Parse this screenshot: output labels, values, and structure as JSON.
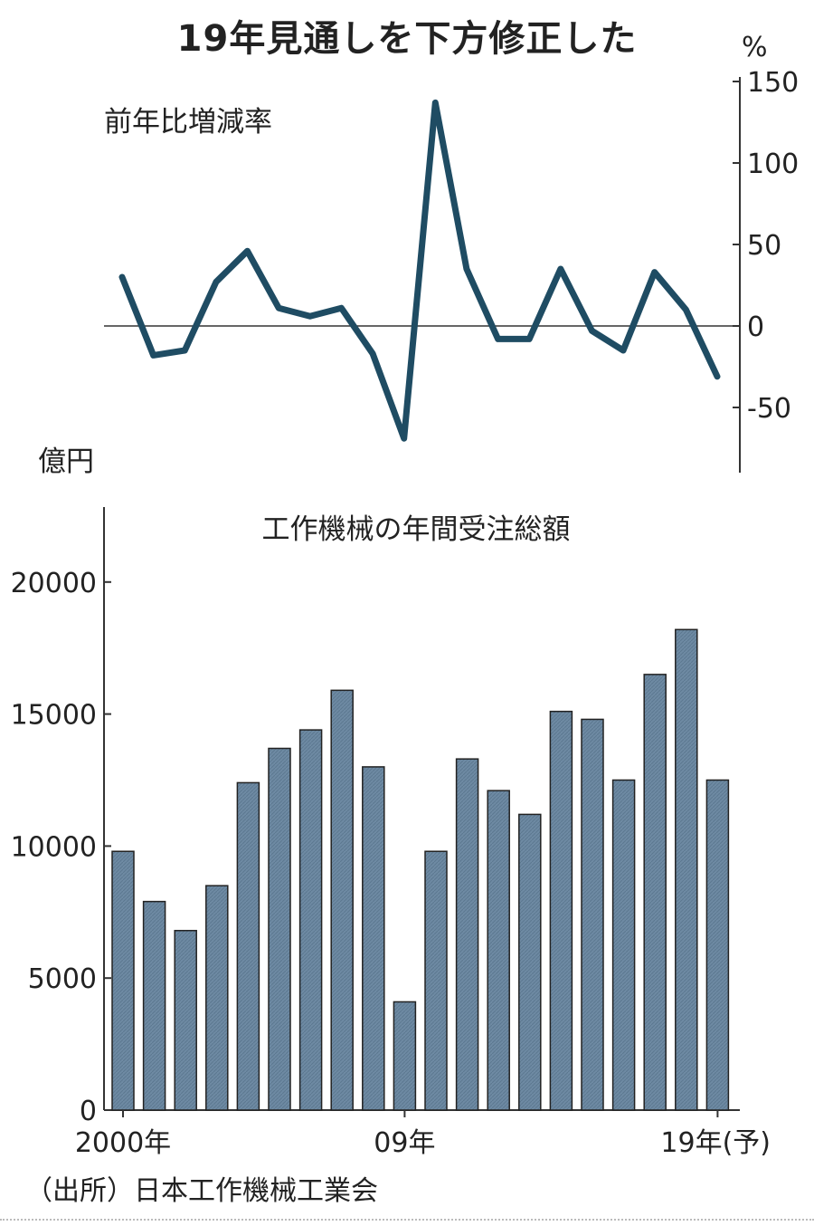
{
  "title": "19年見通しを下方修正した",
  "source": "（出所）日本工作機械工業会",
  "chart_data": [
    {
      "type": "line",
      "title": "前年比増減率",
      "ylabel": "%",
      "ylim": [
        -90,
        150
      ],
      "yticks": [
        150,
        100,
        50,
        0,
        -50
      ],
      "x": [
        "2000",
        "2001",
        "2002",
        "2003",
        "2004",
        "2005",
        "2006",
        "2007",
        "2008",
        "2009",
        "2010",
        "2011",
        "2012",
        "2013",
        "2014",
        "2015",
        "2016",
        "2017",
        "2018",
        "2019"
      ],
      "series": [
        {
          "values": [
            30,
            -18,
            -15,
            27,
            46,
            11,
            6,
            11,
            -17,
            -69,
            137,
            35,
            -8,
            -8,
            35,
            -3,
            -15,
            33,
            10,
            -31
          ]
        }
      ],
      "color": "#1f4c63"
    },
    {
      "type": "bar",
      "title": "工作機械の年間受注総額",
      "ylabel": "億円",
      "ylim": [
        0,
        22500
      ],
      "yticks": [
        20000,
        15000,
        10000,
        5000,
        0
      ],
      "categories": [
        "2000",
        "2001",
        "2002",
        "2003",
        "2004",
        "2005",
        "2006",
        "2007",
        "2008",
        "2009",
        "2010",
        "2011",
        "2012",
        "2013",
        "2014",
        "2015",
        "2016",
        "2017",
        "2018",
        "2019"
      ],
      "values": [
        9800,
        7900,
        6800,
        8500,
        12400,
        13700,
        14400,
        15900,
        13000,
        4100,
        9800,
        13300,
        12100,
        11200,
        15100,
        14800,
        12500,
        16500,
        18200,
        12500
      ],
      "xtick_labels": [
        {
          "index": 0,
          "text": "2000年"
        },
        {
          "index": 9,
          "text": "09年"
        },
        {
          "index": 19,
          "text": "19年(予)"
        }
      ],
      "color": "#6e8aa3"
    }
  ]
}
